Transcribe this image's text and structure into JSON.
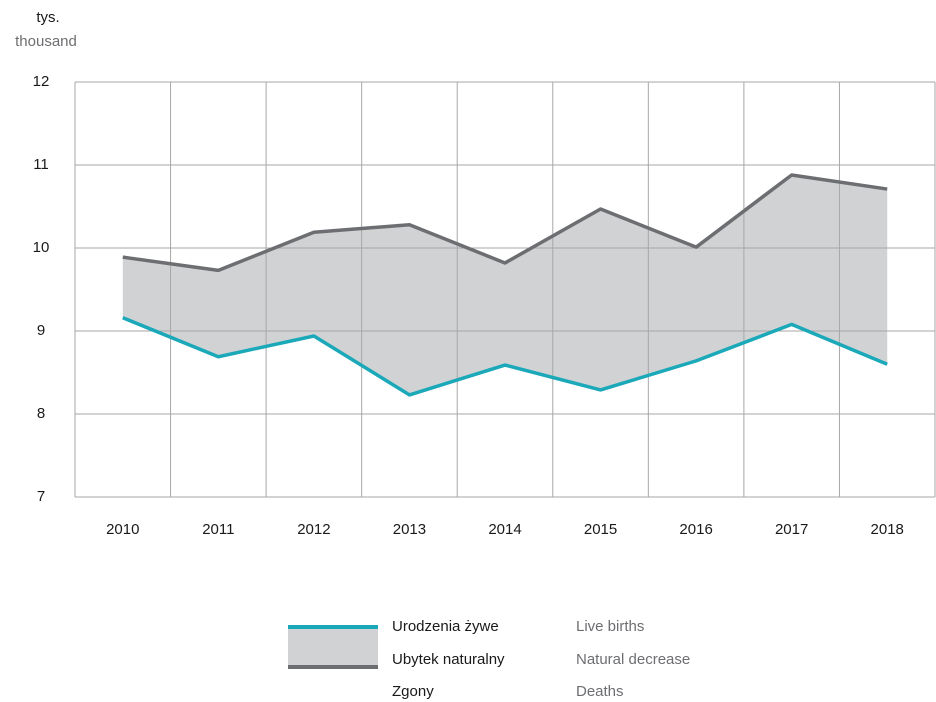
{
  "chart_data": {
    "type": "line",
    "y_label": "tys.",
    "y_label_en": "thousand",
    "categories": [
      "2010",
      "2011",
      "2012",
      "2013",
      "2014",
      "2015",
      "2016",
      "2017",
      "2018"
    ],
    "series": [
      {
        "name": "Urodzenia żywe",
        "name_en": "Live births",
        "color": "#1ba9b9",
        "values": [
          9.16,
          8.69,
          8.94,
          8.23,
          8.59,
          8.29,
          8.64,
          9.08,
          8.6
        ]
      },
      {
        "name": "Zgony",
        "name_en": "Deaths",
        "color": "#6d6e71",
        "values": [
          9.89,
          9.73,
          10.19,
          10.28,
          9.82,
          10.47,
          10.01,
          10.88,
          10.71
        ]
      }
    ],
    "area": {
      "name": "Ubytek naturalny",
      "name_en": "Natural decrease",
      "color": "#d1d2d4"
    },
    "ylim": [
      7,
      12
    ],
    "yticks": [
      7,
      8,
      9,
      10,
      11,
      12
    ],
    "grid": true
  }
}
